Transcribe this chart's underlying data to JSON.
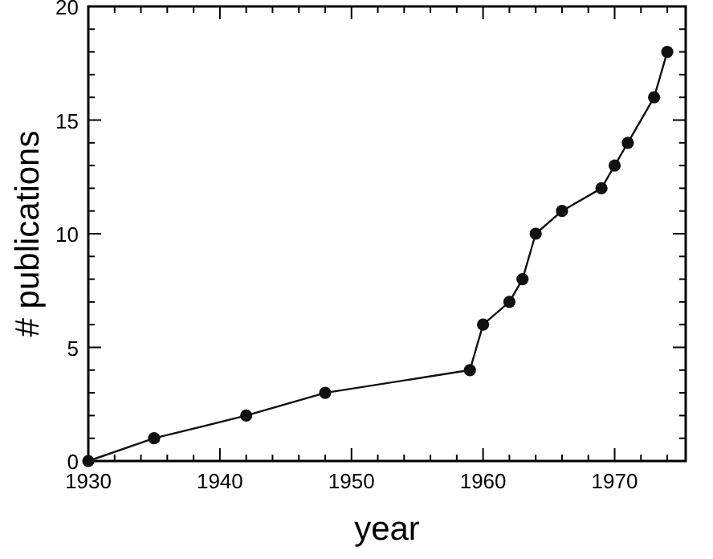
{
  "chart_data": {
    "type": "line",
    "xlabel": "year",
    "ylabel": "# publications",
    "marker": "circle",
    "line_style": "solid",
    "grid": false,
    "x": [
      1930,
      1935,
      1942,
      1948,
      1959,
      1960,
      1962,
      1963,
      1964,
      1966,
      1969,
      1970,
      1971,
      1973,
      1974
    ],
    "series": [
      {
        "color": "#111111",
        "values": [
          0,
          1,
          2,
          3,
          4,
          6,
          7,
          8,
          10,
          11,
          12,
          13,
          14,
          16,
          18
        ]
      }
    ],
    "xlim": [
      1930,
      1975.4
    ],
    "xticks": [
      1930,
      {
        "value": 1932,
        "label": null
      },
      {
        "value": 1934,
        "label": null
      },
      {
        "value": 1936,
        "label": null
      },
      {
        "value": 1938,
        "label": null
      },
      1940,
      {
        "value": 1942,
        "label": null
      },
      {
        "value": 1944,
        "label": null
      },
      {
        "value": 1946,
        "label": null
      },
      {
        "value": 1948,
        "label": null
      },
      1950,
      {
        "value": 1952,
        "label": null
      },
      {
        "value": 1954,
        "label": null
      },
      {
        "value": 1956,
        "label": null
      },
      {
        "value": 1958,
        "label": null
      },
      1960,
      {
        "value": 1962,
        "label": null
      },
      {
        "value": 1964,
        "label": null
      },
      {
        "value": 1966,
        "label": null
      },
      {
        "value": 1968,
        "label": null
      },
      1970,
      {
        "value": 1972,
        "label": null
      },
      {
        "value": 1974,
        "label": null
      }
    ],
    "ylim": [
      0,
      20
    ],
    "yticks": [
      0,
      {
        "value": 1,
        "label": null
      },
      {
        "value": 2,
        "label": null
      },
      {
        "value": 3,
        "label": null
      },
      {
        "value": 4,
        "label": null
      },
      5,
      {
        "value": 6,
        "label": null
      },
      {
        "value": 7,
        "label": null
      },
      {
        "value": 8,
        "label": null
      },
      {
        "value": 9,
        "label": null
      },
      10,
      {
        "value": 11,
        "label": null
      },
      {
        "value": 12,
        "label": null
      },
      {
        "value": 13,
        "label": null
      },
      {
        "value": 14,
        "label": null
      },
      15,
      {
        "value": 16,
        "label": null
      },
      {
        "value": 17,
        "label": null
      },
      {
        "value": 18,
        "label": null
      },
      {
        "value": 19,
        "label": null
      },
      20
    ]
  }
}
